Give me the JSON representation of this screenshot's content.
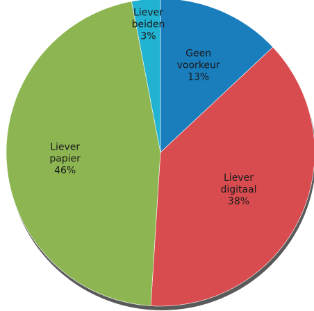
{
  "chart_data": {
    "type": "pie",
    "title": "",
    "slices": [
      {
        "label": [
          "Geen",
          "voorkeur"
        ],
        "value": 13,
        "display": "13%",
        "color": "#1a7dbc"
      },
      {
        "label": [
          "Liever",
          "digitaal"
        ],
        "value": 38,
        "display": "38%",
        "color": "#d84c4f"
      },
      {
        "label": [
          "Liever",
          "papier"
        ],
        "value": 46,
        "display": "46%",
        "color": "#8db652"
      },
      {
        "label": [
          "Liever",
          "beiden"
        ],
        "value": 3,
        "display": "3%",
        "color": "#22b3d3"
      }
    ],
    "start_angle": "12 o'clock",
    "direction": "clockwise",
    "legend": "none",
    "data_labels": "inside slices"
  }
}
